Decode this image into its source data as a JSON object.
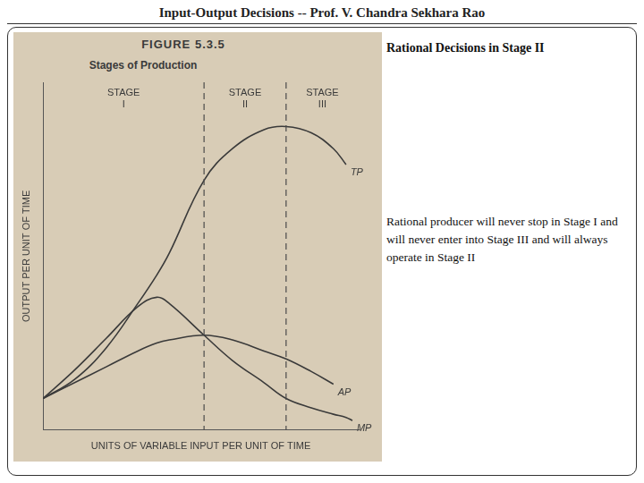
{
  "header": "Input-Output Decisions -- Prof. V. Chandra Sekhara Rao",
  "heading": "Rational Decisions in Stage II",
  "body": "Rational producer will never stop in Stage I and will never enter into Stage III and will always operate in Stage II",
  "chart_data": {
    "type": "line",
    "title": "FIGURE 5.3.5",
    "subtitle": "Stages of Production",
    "x_label": "UNITS OF VARIABLE INPUT PER UNIT OF TIME",
    "y_label": "OUTPUT PER UNIT OF TIME",
    "x": [
      0,
      1,
      2,
      3,
      3.6,
      4,
      5.1,
      6,
      7,
      7.7,
      8.5,
      9.2,
      9.6,
      9.8
    ],
    "series": [
      {
        "name": "TP",
        "color": "#3a3a3a",
        "values": [
          0,
          0.6,
          1.6,
          3.0,
          3.9,
          4.6,
          6.9,
          7.9,
          8.5,
          8.6,
          8.4,
          7.9,
          7.4,
          null
        ]
      },
      {
        "name": "AP",
        "color": "#3a3a3a",
        "values": [
          0,
          0.5,
          1.0,
          1.5,
          1.75,
          1.85,
          2.0,
          1.85,
          1.5,
          1.25,
          0.85,
          0.45,
          null,
          null
        ]
      },
      {
        "name": "MP",
        "color": "#3a3a3a",
        "values": [
          0,
          0.9,
          1.9,
          2.9,
          3.2,
          3.0,
          2.0,
          1.2,
          0.5,
          0,
          -0.3,
          -0.5,
          -0.6,
          -0.7
        ]
      }
    ],
    "xlim": [
      0,
      10
    ],
    "ylim": [
      -1,
      10
    ],
    "stages": [
      "STAGE I",
      "STAGE II",
      "STAGE III"
    ],
    "stage_lines": [
      5.1,
      7.7
    ],
    "tick_labels": false,
    "grid": false
  }
}
